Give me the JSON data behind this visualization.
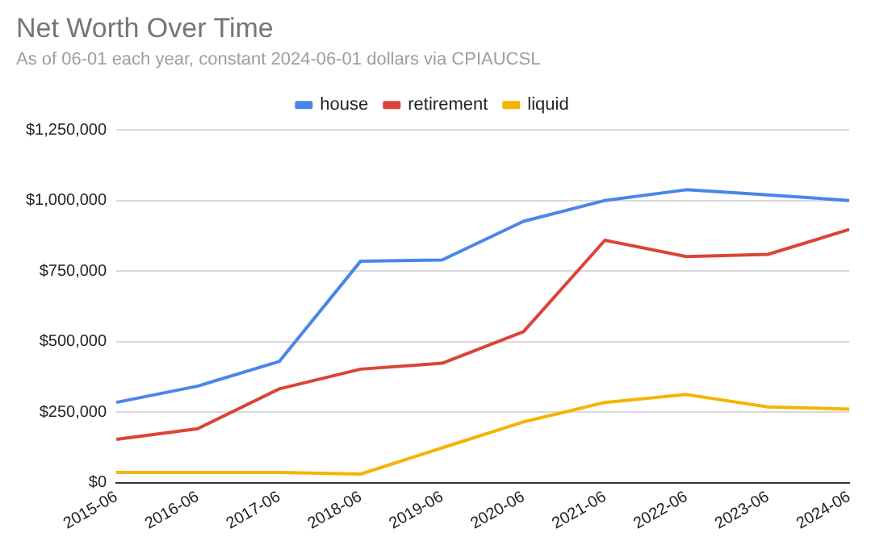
{
  "chart_data": {
    "type": "line",
    "title": "Net Worth Over Time",
    "subtitle": "As of 06-01 each year, constant 2024-06-01 dollars via CPIAUCSL",
    "categories": [
      "2015-06",
      "2016-06",
      "2017-06",
      "2018-06",
      "2019-06",
      "2020-06",
      "2021-06",
      "2022-06",
      "2023-06",
      "2024-06"
    ],
    "series": [
      {
        "name": "house",
        "color": "#4a86e8",
        "values": [
          284000,
          342000,
          429000,
          785000,
          789000,
          926000,
          1000000,
          1038000,
          1020000,
          1000000
        ]
      },
      {
        "name": "retirement",
        "color": "#db4437",
        "values": [
          153000,
          191000,
          332000,
          402000,
          423000,
          535000,
          859000,
          801000,
          809000,
          897000
        ]
      },
      {
        "name": "liquid",
        "color": "#f4b400",
        "values": [
          36000,
          36000,
          36000,
          30000,
          123000,
          215000,
          284000,
          312000,
          268000,
          260000
        ]
      }
    ],
    "ylim": [
      0,
      1250000
    ],
    "yticks": [
      {
        "value": 0,
        "label": "$0"
      },
      {
        "value": 250000,
        "label": "$250,000"
      },
      {
        "value": 500000,
        "label": "$500,000"
      },
      {
        "value": 750000,
        "label": "$750,000"
      },
      {
        "value": 1000000,
        "label": "$1,000,000"
      },
      {
        "value": 1250000,
        "label": "$1,250,000"
      }
    ],
    "grid": "y",
    "legend": "top",
    "marker": "none",
    "line_style": "solid"
  }
}
